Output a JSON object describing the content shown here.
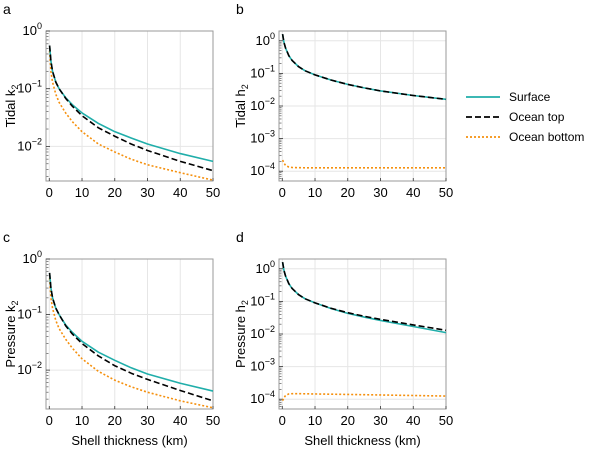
{
  "colors": {
    "surface": "#20aeaa",
    "ocean_top": "#000000",
    "ocean_bottom": "#f5900e",
    "grid": "#e6e6e6",
    "frame": "#9a9a9a"
  },
  "legend": {
    "placement": "right",
    "entries": [
      {
        "name": "Surface",
        "style": "solid"
      },
      {
        "name": "Ocean top",
        "style": "dashed"
      },
      {
        "name": "Ocean bottom",
        "style": "dotted"
      }
    ]
  },
  "chart_data": [
    {
      "panel": "a",
      "type": "line",
      "ylabel": "Tidal k",
      "ylabel_sub": "2",
      "xlabel": "",
      "xlim": [
        -1,
        50
      ],
      "ylim_log10": [
        -2.6,
        0
      ],
      "yscale": "log",
      "xticks": [
        0,
        10,
        20,
        30,
        40,
        50
      ],
      "yticks": [
        {
          "base": "10",
          "exp": "0",
          "value": 1
        },
        {
          "base": "10",
          "exp": "−1",
          "value": 0.1
        },
        {
          "base": "10",
          "exp": "−2",
          "value": 0.01
        }
      ],
      "grid": true,
      "series": [
        {
          "name": "Surface",
          "x": [
            0.1,
            0.5,
            1,
            2,
            3,
            5,
            7,
            10,
            15,
            20,
            25,
            30,
            40,
            50
          ],
          "y": [
            0.56,
            0.3,
            0.2,
            0.13,
            0.1,
            0.07,
            0.053,
            0.038,
            0.025,
            0.018,
            0.014,
            0.011,
            0.0075,
            0.0055
          ]
        },
        {
          "name": "Ocean top",
          "x": [
            0.1,
            0.5,
            1,
            2,
            3,
            5,
            7,
            10,
            15,
            20,
            25,
            30,
            40,
            50
          ],
          "y": [
            0.56,
            0.3,
            0.2,
            0.13,
            0.1,
            0.068,
            0.05,
            0.034,
            0.021,
            0.015,
            0.011,
            0.0085,
            0.0055,
            0.0038
          ]
        },
        {
          "name": "Ocean bottom",
          "x": [
            0.1,
            0.5,
            1,
            2,
            3,
            5,
            7,
            10,
            15,
            20,
            25,
            30,
            40,
            50
          ],
          "y": [
            0.45,
            0.2,
            0.13,
            0.08,
            0.058,
            0.038,
            0.027,
            0.018,
            0.011,
            0.008,
            0.006,
            0.0048,
            0.0035,
            0.0026
          ]
        }
      ]
    },
    {
      "panel": "b",
      "type": "line",
      "ylabel": "Tidal h",
      "ylabel_sub": "2",
      "xlabel": "",
      "xlim": [
        -1,
        50
      ],
      "ylim_log10": [
        -4.3,
        0.3
      ],
      "yscale": "log",
      "xticks": [
        0,
        10,
        20,
        30,
        40,
        50
      ],
      "yticks": [
        {
          "base": "10",
          "exp": "0",
          "value": 1
        },
        {
          "base": "10",
          "exp": "−1",
          "value": 0.1
        },
        {
          "base": "10",
          "exp": "−2",
          "value": 0.01
        },
        {
          "base": "10",
          "exp": "−3",
          "value": 0.001
        },
        {
          "base": "10",
          "exp": "−4",
          "value": 0.0001
        }
      ],
      "grid": true,
      "series": [
        {
          "name": "Surface",
          "x": [
            0.1,
            0.5,
            1,
            2,
            3,
            5,
            7,
            10,
            15,
            20,
            25,
            30,
            40,
            50
          ],
          "y": [
            1.6,
            0.9,
            0.6,
            0.35,
            0.25,
            0.16,
            0.12,
            0.09,
            0.062,
            0.046,
            0.036,
            0.029,
            0.021,
            0.016
          ]
        },
        {
          "name": "Ocean top",
          "x": [
            0.1,
            0.5,
            1,
            2,
            3,
            5,
            7,
            10,
            15,
            20,
            25,
            30,
            40,
            50
          ],
          "y": [
            1.6,
            0.9,
            0.6,
            0.35,
            0.25,
            0.16,
            0.12,
            0.09,
            0.062,
            0.046,
            0.036,
            0.029,
            0.021,
            0.016
          ]
        },
        {
          "name": "Ocean bottom",
          "x": [
            0.1,
            0.5,
            1,
            2,
            3,
            5,
            10,
            20,
            30,
            40,
            50
          ],
          "y": [
            0.00022,
            0.00018,
            0.00015,
            0.000135,
            0.00013,
            0.000128,
            0.000127,
            0.000127,
            0.000127,
            0.000127,
            0.000127
          ]
        }
      ]
    },
    {
      "panel": "c",
      "type": "line",
      "ylabel": "Pressure k",
      "ylabel_sub": "2",
      "xlabel": "Shell thickness (km)",
      "xlim": [
        -1,
        50
      ],
      "ylim_log10": [
        -2.7,
        0
      ],
      "yscale": "log",
      "xticks": [
        0,
        10,
        20,
        30,
        40,
        50
      ],
      "yticks": [
        {
          "base": "10",
          "exp": "0",
          "value": 1
        },
        {
          "base": "10",
          "exp": "−1",
          "value": 0.1
        },
        {
          "base": "10",
          "exp": "−2",
          "value": 0.01
        }
      ],
      "grid": true,
      "series": [
        {
          "name": "Surface",
          "x": [
            0.1,
            0.5,
            1,
            2,
            3,
            5,
            7,
            10,
            15,
            20,
            25,
            30,
            40,
            50
          ],
          "y": [
            0.56,
            0.3,
            0.2,
            0.13,
            0.1,
            0.065,
            0.048,
            0.033,
            0.021,
            0.015,
            0.011,
            0.0085,
            0.0058,
            0.0042
          ]
        },
        {
          "name": "Ocean top",
          "x": [
            0.1,
            0.5,
            1,
            2,
            3,
            5,
            7,
            10,
            15,
            20,
            25,
            30,
            40,
            50
          ],
          "y": [
            0.56,
            0.3,
            0.2,
            0.13,
            0.1,
            0.063,
            0.045,
            0.03,
            0.018,
            0.012,
            0.0088,
            0.0068,
            0.0043,
            0.0028
          ]
        },
        {
          "name": "Ocean bottom",
          "x": [
            0.1,
            0.5,
            1,
            2,
            3,
            5,
            7,
            10,
            15,
            20,
            25,
            30,
            40,
            50
          ],
          "y": [
            0.45,
            0.2,
            0.13,
            0.078,
            0.056,
            0.036,
            0.025,
            0.016,
            0.0095,
            0.0066,
            0.005,
            0.004,
            0.0028,
            0.0021
          ]
        }
      ]
    },
    {
      "panel": "d",
      "type": "line",
      "ylabel": "Pressure h",
      "ylabel_sub": "2",
      "xlabel": "Shell thickness (km)",
      "xlim": [
        -1,
        50
      ],
      "ylim_log10": [
        -4.3,
        0.3
      ],
      "yscale": "log",
      "xticks": [
        0,
        10,
        20,
        30,
        40,
        50
      ],
      "yticks": [
        {
          "base": "10",
          "exp": "0",
          "value": 1
        },
        {
          "base": "10",
          "exp": "−1",
          "value": 0.1
        },
        {
          "base": "10",
          "exp": "−2",
          "value": 0.01
        },
        {
          "base": "10",
          "exp": "−3",
          "value": 0.001
        },
        {
          "base": "10",
          "exp": "−4",
          "value": 0.0001
        }
      ],
      "grid": true,
      "series": [
        {
          "name": "Surface",
          "x": [
            0.1,
            0.5,
            1,
            2,
            3,
            5,
            7,
            10,
            15,
            20,
            25,
            30,
            40,
            50
          ],
          "y": [
            1.6,
            0.9,
            0.6,
            0.35,
            0.25,
            0.16,
            0.12,
            0.09,
            0.06,
            0.043,
            0.033,
            0.026,
            0.017,
            0.011
          ]
        },
        {
          "name": "Ocean top",
          "x": [
            0.1,
            0.5,
            1,
            2,
            3,
            5,
            7,
            10,
            15,
            20,
            25,
            30,
            40,
            50
          ],
          "y": [
            1.6,
            0.9,
            0.6,
            0.35,
            0.25,
            0.16,
            0.12,
            0.09,
            0.061,
            0.045,
            0.035,
            0.028,
            0.019,
            0.013
          ]
        },
        {
          "name": "Ocean bottom",
          "x": [
            0.1,
            0.5,
            1,
            2,
            3,
            5,
            10,
            20,
            30,
            40,
            50
          ],
          "y": [
            9e-05,
            0.00011,
            0.00013,
            0.000145,
            0.000148,
            0.000148,
            0.000145,
            0.00014,
            0.000135,
            0.00013,
            0.000125
          ]
        }
      ]
    }
  ]
}
